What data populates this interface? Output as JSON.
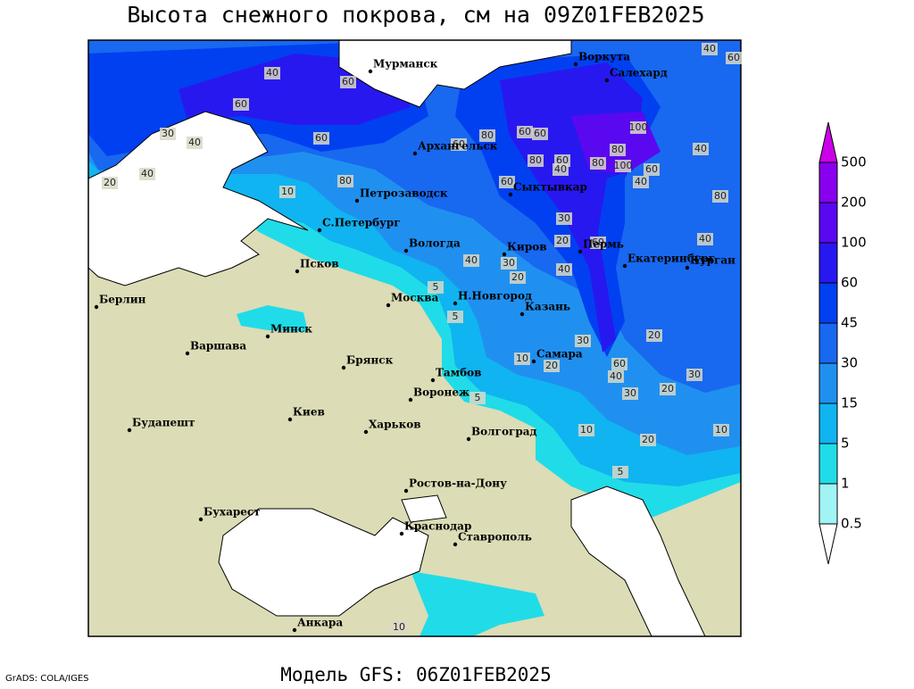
{
  "title": "Высота снежного покрова, см на 09Z01FEB2025",
  "footer_left": "GrADS: COLA/IGES",
  "footer_center": "Модель GFS: 06Z01FEB2025",
  "cities": [
    "Мурманск",
    "Воркута",
    "Салехард",
    "Архангельск",
    "Петрозаводск",
    "Сыктывкар",
    "С.Петербург",
    "Вологда",
    "Киров",
    "Пермь",
    "Екатеринбург",
    "Курган",
    "Псков",
    "Н.Новгород",
    "Берлин",
    "Москва",
    "Казань",
    "Минск",
    "Варшава",
    "Самара",
    "Брянск",
    "Тамбов",
    "Киев",
    "Воронеж",
    "Будапешт",
    "Харьков",
    "Волгоград",
    "Ростов-на-Дону",
    "Бухарест",
    "Краснодар",
    "Ставрополь",
    "Анкара"
  ],
  "contour_labels": [
    40,
    60,
    60,
    40,
    60,
    30,
    40,
    60,
    40,
    20,
    10,
    80,
    60,
    80,
    60,
    60,
    100,
    80,
    60,
    40,
    80,
    100,
    80,
    60,
    40,
    60,
    40,
    80,
    40,
    30,
    20,
    60,
    40,
    30,
    20,
    40,
    5,
    5,
    30,
    20,
    10,
    20,
    60,
    40,
    30,
    20,
    30,
    5,
    10,
    20,
    10,
    5,
    10
  ],
  "legend": {
    "levels": [
      0.5,
      1,
      5,
      15,
      30,
      45,
      60,
      100,
      200,
      500
    ],
    "colors": [
      "#ffffff",
      "#a0f4f4",
      "#20dce8",
      "#10b4f0",
      "#2090f0",
      "#1868f0",
      "#0040f0",
      "#2818f0",
      "#5a08f0",
      "#8800ee",
      "#cc00e8"
    ]
  }
}
